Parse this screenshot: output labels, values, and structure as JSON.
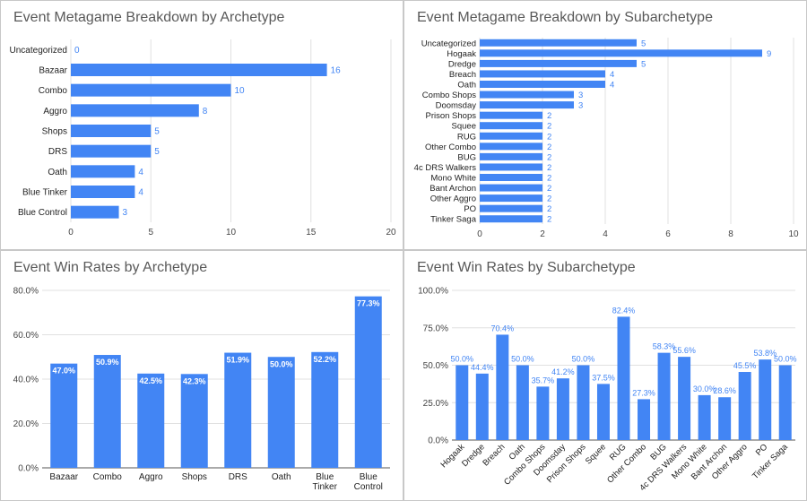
{
  "colors": {
    "bar": "#4285f4",
    "label_out": "#4285f4",
    "label_in": "#ffffff",
    "axis_text": "#444444",
    "grid": "#e0e0e0",
    "title": "#595959"
  },
  "chart_data": [
    {
      "type": "bar",
      "orientation": "horizontal",
      "title": "Event Metagame Breakdown by Archetype",
      "categories": [
        "Uncategorized",
        "Bazaar",
        "Combo",
        "Aggro",
        "Shops",
        "DRS",
        "Oath",
        "Blue Tinker",
        "Blue Control"
      ],
      "values": [
        0,
        16,
        10,
        8,
        5,
        5,
        4,
        4,
        3
      ],
      "value_labels": [
        "0",
        "16",
        "10",
        "8",
        "5",
        "5",
        "4",
        "4",
        "3"
      ],
      "xlim": [
        0,
        20
      ],
      "ticks": [
        0,
        5,
        10,
        15,
        20
      ],
      "tick_labels": [
        "0",
        "5",
        "10",
        "15",
        "20"
      ],
      "grid": true,
      "legend": "none"
    },
    {
      "type": "bar",
      "orientation": "horizontal",
      "title": "Event Metagame Breakdown by Subarchetype",
      "categories": [
        "Uncategorized",
        "Hogaak",
        "Dredge",
        "Breach",
        "Oath",
        "Combo Shops",
        "Doomsday",
        "Prison Shops",
        "Squee",
        "RUG",
        "Other Combo",
        "BUG",
        "4c DRS Walkers",
        "Mono White",
        "Bant Archon",
        "Other Aggro",
        "PO",
        "Tinker Saga"
      ],
      "values": [
        5,
        9,
        5,
        4,
        4,
        3,
        3,
        2,
        2,
        2,
        2,
        2,
        2,
        2,
        2,
        2,
        2,
        2
      ],
      "value_labels": [
        "5",
        "9",
        "5",
        "4",
        "4",
        "3",
        "3",
        "2",
        "2",
        "2",
        "2",
        "2",
        "2",
        "2",
        "2",
        "2",
        "2",
        "2"
      ],
      "xlim": [
        0,
        10
      ],
      "ticks": [
        0,
        2,
        4,
        6,
        8,
        10
      ],
      "tick_labels": [
        "0",
        "2",
        "4",
        "6",
        "8",
        "10"
      ],
      "grid": true,
      "legend": "none"
    },
    {
      "type": "bar",
      "orientation": "vertical",
      "title": "Event Win Rates by Archetype",
      "categories": [
        "Bazaar",
        "Combo",
        "Aggro",
        "Shops",
        "DRS",
        "Oath",
        "Blue Tinker",
        "Blue Control"
      ],
      "values": [
        47.0,
        50.9,
        42.5,
        42.3,
        51.9,
        50.0,
        52.2,
        77.3
      ],
      "value_labels": [
        "47.0%",
        "50.9%",
        "42.5%",
        "42.3%",
        "51.9%",
        "50.0%",
        "52.2%",
        "77.3%"
      ],
      "ylim": [
        0,
        80
      ],
      "ticks": [
        0,
        20,
        40,
        60,
        80
      ],
      "tick_labels": [
        "0.0%",
        "20.0%",
        "40.0%",
        "60.0%",
        "80.0%"
      ],
      "grid": true,
      "legend": "none"
    },
    {
      "type": "bar",
      "orientation": "vertical",
      "title": "Event Win Rates by Subarchetype",
      "categories": [
        "Hogaak",
        "Dredge",
        "Breach",
        "Oath",
        "Combo Shops",
        "Doomsday",
        "Prison Shops",
        "Squee",
        "RUG",
        "Other Combo",
        "BUG",
        "4c DRS Walkers",
        "Mono White",
        "Bant Archon",
        "Other Aggro",
        "PO",
        "Tinker Saga"
      ],
      "values": [
        50.0,
        44.4,
        70.4,
        50.0,
        35.7,
        41.2,
        50.0,
        37.5,
        82.4,
        27.3,
        58.3,
        55.6,
        30.0,
        28.6,
        45.5,
        53.8,
        50.0
      ],
      "value_labels": [
        "50.0%",
        "44.4%",
        "70.4%",
        "50.0%",
        "35.7%",
        "41.2%",
        "50.0%",
        "37.5%",
        "82.4%",
        "27.3%",
        "58.3%",
        "55.6%",
        "30.0%",
        "28.6%",
        "45.5%",
        "53.8%",
        "50.0%"
      ],
      "ylim": [
        0,
        100
      ],
      "ticks": [
        0,
        25,
        50,
        75,
        100
      ],
      "tick_labels": [
        "0.0%",
        "25.0%",
        "50.0%",
        "75.0%",
        "100.0%"
      ],
      "grid": true,
      "legend": "none"
    }
  ]
}
